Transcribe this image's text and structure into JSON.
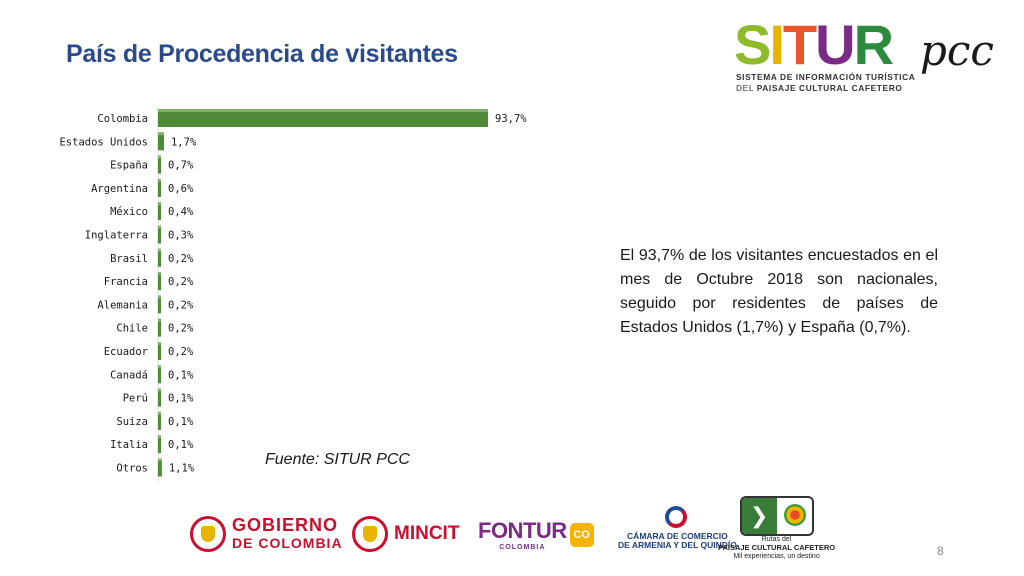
{
  "slide": {
    "title": "País de Procedencia de visitantes",
    "description": "El 93,7% de los visitantes encuestados en el mes de Octubre 2018 son nacionales, seguido por residentes de países de Estados Unidos (1,7%) y España (0,7%).",
    "source": "Fuente: SITUR PCC",
    "page_number": "8"
  },
  "logo": {
    "word": "SITUR",
    "suffix": "pcc",
    "subtitle_line1": "SISTEMA DE INFORMACIÓN TURÍSTICA",
    "subtitle_line2_prefix": "DEL",
    "subtitle_line2_bold": "PAISAJE CULTURAL CAFETERO",
    "letter_colors": [
      "#8dbb2a",
      "#e8b400",
      "#e8572a",
      "#7d2a87",
      "#2b8a3e"
    ]
  },
  "footer_logos": {
    "gobierno_line1": "GOBIERNO",
    "gobierno_line2": "DE COLOMBIA",
    "mincit": "MINCIT",
    "fontur": "FONTUR",
    "fontur_sub": "COLOMBIA",
    "fontur_badge": "CO",
    "camara_line1": "CÁMARA DE COMERCIO",
    "camara_line2": "DE ARMENIA Y DEL QUINDÍO",
    "rutas_line1": "Rutas del",
    "rutas_line2": "PAISAJE CULTURAL CAFETERO",
    "rutas_line3": "Mil experiencias, un destino"
  },
  "chart_data": {
    "type": "bar",
    "orientation": "horizontal",
    "categories": [
      "Colombia",
      "Estados Unidos",
      "España",
      "Argentina",
      "México",
      "Inglaterra",
      "Brasil",
      "Francia",
      "Alemania",
      "Chile",
      "Ecuador",
      "Canadá",
      "Perú",
      "Suiza",
      "Italia",
      "Otros"
    ],
    "values": [
      93.7,
      1.7,
      0.7,
      0.6,
      0.4,
      0.3,
      0.2,
      0.2,
      0.2,
      0.2,
      0.2,
      0.1,
      0.1,
      0.1,
      0.1,
      1.1
    ],
    "labels": [
      "93,7%",
      "1,7%",
      "0,7%",
      "0,6%",
      "0,4%",
      "0,3%",
      "0,2%",
      "0,2%",
      "0,2%",
      "0,2%",
      "0,2%",
      "0,1%",
      "0,1%",
      "0,1%",
      "0,1%",
      "1,1%"
    ],
    "xlim": [
      0,
      100
    ],
    "bar_color": "#4e8a3a",
    "grid": false,
    "legend": "none"
  }
}
